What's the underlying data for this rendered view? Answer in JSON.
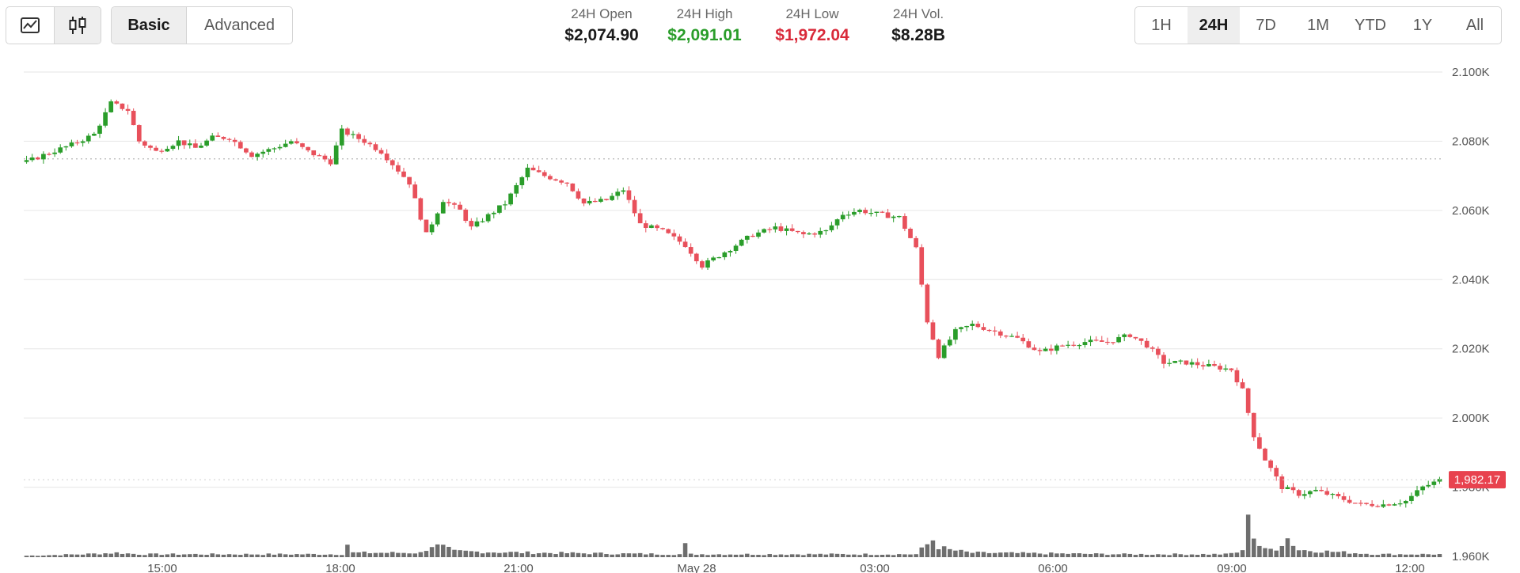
{
  "toolbar": {
    "chart_types": [
      {
        "name": "line-chart-icon",
        "active": false
      },
      {
        "name": "candlestick-chart-icon",
        "active": true
      }
    ],
    "modes": [
      {
        "label": "Basic",
        "active": true
      },
      {
        "label": "Advanced",
        "active": false
      }
    ],
    "ranges": [
      {
        "label": "1H",
        "active": false
      },
      {
        "label": "24H",
        "active": true
      },
      {
        "label": "7D",
        "active": false
      },
      {
        "label": "1M",
        "active": false
      },
      {
        "label": "YTD",
        "active": false
      },
      {
        "label": "1Y",
        "active": false
      },
      {
        "label": "All",
        "active": false
      }
    ]
  },
  "stats": [
    {
      "label": "24H Open",
      "value": "$2,074.90",
      "tone": "neutral"
    },
    {
      "label": "24H High",
      "value": "$2,091.01",
      "tone": "up"
    },
    {
      "label": "24H Low",
      "value": "$1,972.04",
      "tone": "down"
    },
    {
      "label": "24H Vol.",
      "value": "$8.28B",
      "tone": "neutral"
    }
  ],
  "colors": {
    "up": "#2a9d2a",
    "down": "#e8505b",
    "volume": "#555555",
    "grid": "#e6e6e6",
    "price_tag": "#e8424e"
  },
  "chart_data": {
    "type": "candlestick",
    "x_ticks": [
      "15:00",
      "18:00",
      "21:00",
      "May 28",
      "03:00",
      "06:00",
      "09:00",
      "12:00"
    ],
    "y_ticks": [
      "2.100K",
      "2.080K",
      "2.060K",
      "2.040K",
      "2.020K",
      "2.000K",
      "1.980K",
      "1.960K"
    ],
    "ylim": [
      1960,
      2100
    ],
    "open_reference_price": 2074.9,
    "current_price_label": "1,982.17",
    "current_price": 1982.17,
    "grid": true,
    "volume_bars": true,
    "close_keypoints": [
      [
        0,
        2074
      ],
      [
        3,
        2076
      ],
      [
        8,
        2079
      ],
      [
        12,
        2082
      ],
      [
        15,
        2091
      ],
      [
        18,
        2089
      ],
      [
        20,
        2080
      ],
      [
        23,
        2077
      ],
      [
        27,
        2080
      ],
      [
        30,
        2078
      ],
      [
        33,
        2081
      ],
      [
        36,
        2081
      ],
      [
        40,
        2076
      ],
      [
        44,
        2078
      ],
      [
        47,
        2080
      ],
      [
        50,
        2077
      ],
      [
        54,
        2074
      ],
      [
        56,
        2083
      ],
      [
        60,
        2080
      ],
      [
        63,
        2077
      ],
      [
        68,
        2068
      ],
      [
        71,
        2053
      ],
      [
        74,
        2063
      ],
      [
        77,
        2060
      ],
      [
        79,
        2055
      ],
      [
        85,
        2062
      ],
      [
        89,
        2072
      ],
      [
        92,
        2070
      ],
      [
        96,
        2068
      ],
      [
        99,
        2062
      ],
      [
        103,
        2063
      ],
      [
        106,
        2066
      ],
      [
        109,
        2056
      ],
      [
        113,
        2054
      ],
      [
        117,
        2050
      ],
      [
        120,
        2044
      ],
      [
        124,
        2048
      ],
      [
        129,
        2053
      ],
      [
        133,
        2055
      ],
      [
        138,
        2053
      ],
      [
        142,
        2054
      ],
      [
        145,
        2059
      ],
      [
        148,
        2060
      ],
      [
        151,
        2059
      ],
      [
        155,
        2058
      ],
      [
        158,
        2049
      ],
      [
        160,
        2028
      ],
      [
        162,
        2018
      ],
      [
        165,
        2025
      ],
      [
        168,
        2027
      ],
      [
        172,
        2025
      ],
      [
        176,
        2023
      ],
      [
        180,
        2019
      ],
      [
        184,
        2021
      ],
      [
        188,
        2022
      ],
      [
        192,
        2022
      ],
      [
        196,
        2024
      ],
      [
        199,
        2021
      ],
      [
        202,
        2016
      ],
      [
        206,
        2016
      ],
      [
        210,
        2015
      ],
      [
        214,
        2014
      ],
      [
        216,
        2008
      ],
      [
        218,
        1995
      ],
      [
        220,
        1988
      ],
      [
        223,
        1980
      ],
      [
        226,
        1978
      ],
      [
        229,
        1979
      ],
      [
        233,
        1977
      ],
      [
        237,
        1975
      ],
      [
        241,
        1975
      ],
      [
        245,
        1976
      ],
      [
        248,
        1980
      ],
      [
        251,
        1982
      ]
    ],
    "volume_keypoints": [
      [
        0,
        1
      ],
      [
        10,
        2
      ],
      [
        16,
        3
      ],
      [
        20,
        2
      ],
      [
        56,
        2
      ],
      [
        57,
        9
      ],
      [
        58,
        3
      ],
      [
        70,
        3
      ],
      [
        72,
        8
      ],
      [
        74,
        7
      ],
      [
        76,
        4
      ],
      [
        90,
        3
      ],
      [
        116,
        2
      ],
      [
        117,
        8
      ],
      [
        118,
        2
      ],
      [
        158,
        2
      ],
      [
        161,
        12
      ],
      [
        162,
        7
      ],
      [
        164,
        5
      ],
      [
        168,
        3
      ],
      [
        195,
        2
      ],
      [
        213,
        2
      ],
      [
        216,
        4
      ],
      [
        217,
        36
      ],
      [
        218,
        14
      ],
      [
        219,
        8
      ],
      [
        220,
        5
      ],
      [
        222,
        6
      ],
      [
        224,
        13
      ],
      [
        226,
        5
      ],
      [
        240,
        2
      ],
      [
        251,
        2
      ]
    ],
    "candle_count": 252
  }
}
